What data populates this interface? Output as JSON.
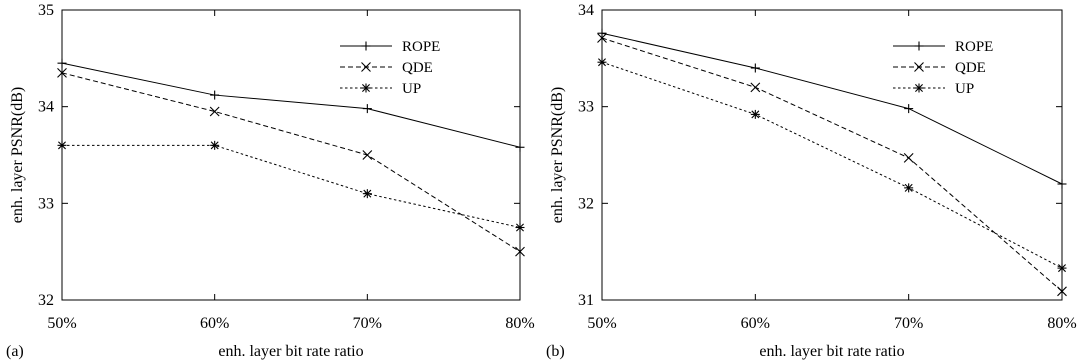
{
  "chart_data": [
    {
      "type": "line",
      "panel_label": "(a)",
      "title": "",
      "xlabel": "enh. layer bit rate ratio",
      "ylabel": "enh. layer PSNR(dB)",
      "categories": [
        "50%",
        "60%",
        "70%",
        "80%"
      ],
      "x": [
        50,
        60,
        70,
        80
      ],
      "xlim": [
        50,
        80
      ],
      "ylim": [
        32,
        35
      ],
      "yticks": [
        32,
        33,
        34,
        35
      ],
      "grid": false,
      "legend_position": "top-right",
      "series": [
        {
          "name": "ROPE",
          "marker": "plus",
          "dash": "solid",
          "values": [
            34.45,
            34.12,
            33.98,
            33.58
          ]
        },
        {
          "name": "QDE",
          "marker": "x",
          "dash": "dashed",
          "values": [
            34.35,
            33.95,
            33.5,
            32.5
          ]
        },
        {
          "name": "UP",
          "marker": "star",
          "dash": "dotted",
          "values": [
            33.6,
            33.6,
            33.1,
            32.75
          ]
        }
      ]
    },
    {
      "type": "line",
      "panel_label": "(b)",
      "title": "",
      "xlabel": "enh. layer bit rate ratio",
      "ylabel": "enh. layer PSNR(dB)",
      "categories": [
        "50%",
        "60%",
        "70%",
        "80%"
      ],
      "x": [
        50,
        60,
        70,
        80
      ],
      "xlim": [
        50,
        80
      ],
      "ylim": [
        31,
        34
      ],
      "yticks": [
        31,
        32,
        33,
        34
      ],
      "grid": false,
      "legend_position": "top-right",
      "series": [
        {
          "name": "ROPE",
          "marker": "plus",
          "dash": "solid",
          "values": [
            33.76,
            33.4,
            32.98,
            32.2
          ]
        },
        {
          "name": "QDE",
          "marker": "x",
          "dash": "dashed",
          "values": [
            33.71,
            33.2,
            32.47,
            31.09
          ]
        },
        {
          "name": "UP",
          "marker": "star",
          "dash": "dotted",
          "values": [
            33.46,
            32.92,
            32.16,
            31.33
          ]
        }
      ]
    }
  ]
}
